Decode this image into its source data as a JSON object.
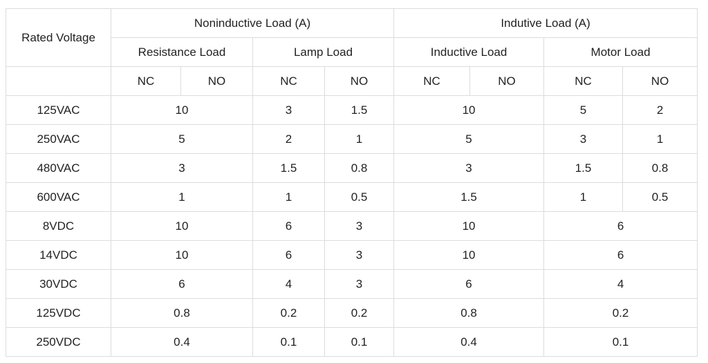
{
  "header": {
    "rated_voltage": "Rated Voltage",
    "noninductive": "Noninductive Load (A)",
    "inductive": "Indutive Load (A)",
    "resistance_load": "Resistance Load",
    "lamp_load": "Lamp Load",
    "inductive_load": "Inductive Load",
    "motor_load": "Motor Load",
    "nc": "NC",
    "no": "NO"
  },
  "rows": [
    {
      "voltage": "125VAC",
      "resistance": "10",
      "lamp_nc": "3",
      "lamp_no": "1.5",
      "inductive": "10",
      "motor_nc": "5",
      "motor_no": "2"
    },
    {
      "voltage": "250VAC",
      "resistance": "5",
      "lamp_nc": "2",
      "lamp_no": "1",
      "inductive": "5",
      "motor_nc": "3",
      "motor_no": "1"
    },
    {
      "voltage": "480VAC",
      "resistance": "3",
      "lamp_nc": "1.5",
      "lamp_no": "0.8",
      "inductive": "3",
      "motor_nc": "1.5",
      "motor_no": "0.8"
    },
    {
      "voltage": "600VAC",
      "resistance": "1",
      "lamp_nc": "1",
      "lamp_no": "0.5",
      "inductive": "1.5",
      "motor_nc": "1",
      "motor_no": "0.5"
    },
    {
      "voltage": "8VDC",
      "resistance": "10",
      "lamp_nc": "6",
      "lamp_no": "3",
      "inductive": "10",
      "motor": "6"
    },
    {
      "voltage": "14VDC",
      "resistance": "10",
      "lamp_nc": "6",
      "lamp_no": "3",
      "inductive": "10",
      "motor": "6"
    },
    {
      "voltage": "30VDC",
      "resistance": "6",
      "lamp_nc": "4",
      "lamp_no": "3",
      "inductive": "6",
      "motor": "4"
    },
    {
      "voltage": "125VDC",
      "resistance": "0.8",
      "lamp_nc": "0.2",
      "lamp_no": "0.2",
      "inductive": "0.8",
      "motor": "0.2"
    },
    {
      "voltage": "250VDC",
      "resistance": "0.4",
      "lamp_nc": "0.1",
      "lamp_no": "0.1",
      "inductive": "0.4",
      "motor": "0.1"
    }
  ]
}
